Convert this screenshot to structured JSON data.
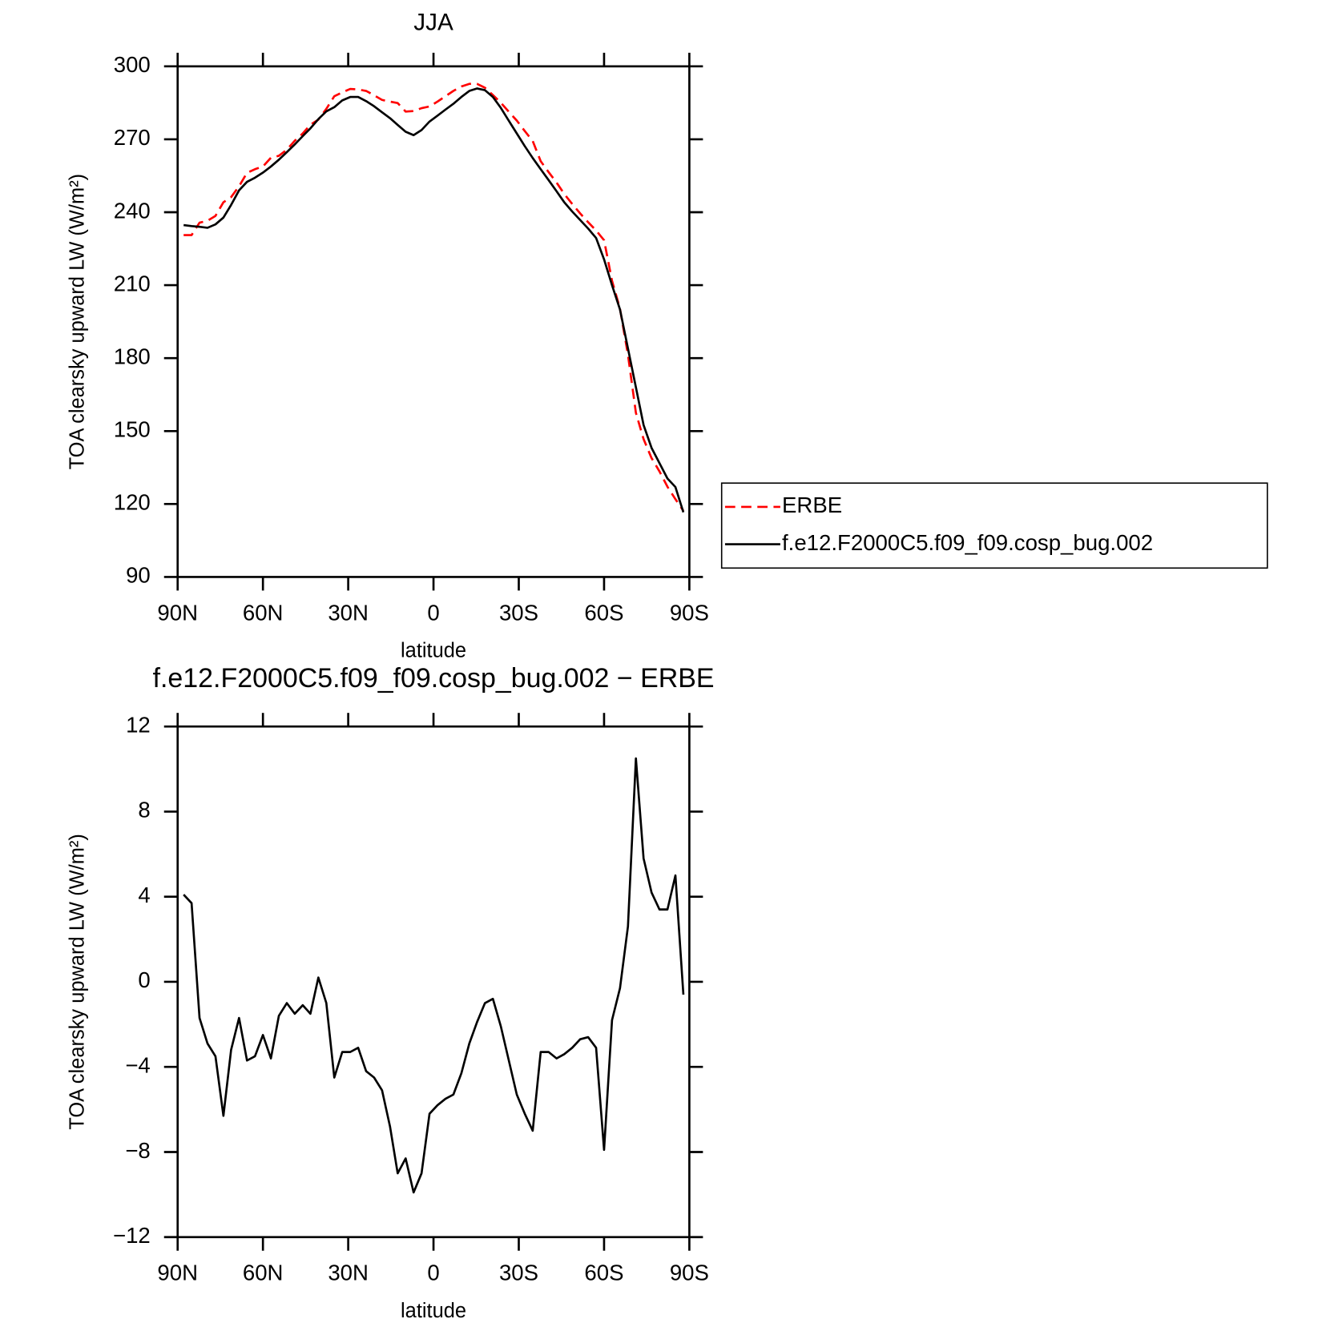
{
  "chart_data": [
    {
      "type": "line",
      "title": "JJA",
      "xlabel": "latitude",
      "ylabel": "TOA clearsky upward LW (W/m²)",
      "x": [
        87.9,
        85.1,
        82.3,
        79.5,
        76.7,
        73.9,
        71.2,
        68.4,
        65.6,
        62.8,
        60.0,
        57.2,
        54.4,
        51.6,
        48.8,
        46.0,
        43.3,
        40.5,
        37.7,
        34.9,
        32.1,
        29.3,
        26.5,
        23.7,
        20.9,
        18.1,
        15.3,
        12.6,
        9.8,
        7.0,
        4.2,
        1.4,
        -1.4,
        -4.2,
        -7.0,
        -9.8,
        -12.6,
        -15.3,
        -18.1,
        -20.9,
        -23.7,
        -26.5,
        -29.3,
        -32.1,
        -34.9,
        -37.7,
        -40.5,
        -43.3,
        -46.0,
        -48.8,
        -51.6,
        -54.4,
        -57.2,
        -60.0,
        -62.8,
        -65.6,
        -68.4,
        -71.2,
        -73.9,
        -76.7,
        -79.5,
        -82.3,
        -85.1,
        -87.9
      ],
      "series": [
        {
          "name": "ERBE",
          "color": "#ff0000",
          "linestyle": "dashed",
          "values": [
            230.6,
            230.6,
            235.7,
            236.5,
            238.5,
            244.1,
            246.2,
            250.7,
            256.2,
            257.7,
            258.8,
            262.4,
            263.2,
            265.7,
            269.4,
            272.4,
            276.0,
            278.1,
            282.5,
            287.7,
            289.3,
            290.7,
            290.5,
            289.9,
            288.1,
            286.2,
            285.5,
            284.9,
            281.4,
            281.6,
            282.8,
            283.5,
            285.5,
            287.7,
            289.9,
            291.7,
            292.8,
            292.8,
            291.2,
            288.2,
            285.0,
            281.3,
            277.7,
            273.4,
            269.3,
            261.0,
            256.5,
            252.2,
            247.5,
            243.4,
            239.5,
            235.9,
            232.5,
            228.5,
            211.8,
            200.3,
            181.4,
            157.5,
            146.7,
            138.9,
            133.4,
            127.1,
            122.0,
            117.2
          ]
        },
        {
          "name": "f.e12.F2000C5.f09_f09.cosp_bug.002",
          "color": "#000000",
          "linestyle": "solid",
          "values": [
            234.7,
            234.3,
            234.0,
            233.6,
            235.0,
            237.8,
            243.0,
            249.0,
            252.5,
            254.2,
            256.3,
            258.8,
            261.6,
            264.7,
            267.9,
            271.3,
            274.5,
            278.3,
            281.5,
            283.2,
            286.0,
            287.4,
            287.4,
            285.7,
            283.6,
            281.1,
            278.7,
            275.9,
            273.1,
            271.7,
            273.8,
            277.3,
            279.7,
            282.2,
            284.6,
            287.4,
            289.9,
            290.9,
            290.2,
            287.4,
            282.9,
            277.6,
            272.4,
            267.2,
            262.3,
            257.7,
            253.2,
            248.6,
            244.1,
            240.3,
            236.8,
            233.3,
            229.4,
            220.6,
            210.0,
            200.0,
            184.0,
            168.0,
            152.5,
            143.1,
            136.8,
            130.5,
            127.0,
            116.6
          ]
        }
      ],
      "xlim": [
        90,
        -90
      ],
      "xticks": [
        {
          "value": 90,
          "label": "90N"
        },
        {
          "value": 60,
          "label": "60N"
        },
        {
          "value": 30,
          "label": "30N"
        },
        0,
        {
          "value": -30,
          "label": "30S"
        },
        {
          "value": -60,
          "label": "60S"
        },
        {
          "value": -90,
          "label": "90S"
        }
      ],
      "ylim": [
        90,
        300
      ],
      "yticks": [
        90,
        120,
        150,
        180,
        210,
        240,
        270,
        300
      ],
      "legend": "right"
    },
    {
      "type": "line",
      "title": "f.e12.F2000C5.f09_f09.cosp_bug.002 − ERBE",
      "xlabel": "latitude",
      "ylabel": "TOA clearsky upward LW (W/m²)",
      "x": [
        87.9,
        85.1,
        82.3,
        79.5,
        76.7,
        73.9,
        71.2,
        68.4,
        65.6,
        62.8,
        60.0,
        57.2,
        54.4,
        51.6,
        48.8,
        46.0,
        43.3,
        40.5,
        37.7,
        34.9,
        32.1,
        29.3,
        26.5,
        23.7,
        20.9,
        18.1,
        15.3,
        12.6,
        9.8,
        7.0,
        4.2,
        1.4,
        -1.4,
        -4.2,
        -7.0,
        -9.8,
        -12.6,
        -15.3,
        -18.1,
        -20.9,
        -23.7,
        -26.5,
        -29.3,
        -32.1,
        -34.9,
        -37.7,
        -40.5,
        -43.3,
        -46.0,
        -48.8,
        -51.6,
        -54.4,
        -57.2,
        -60.0,
        -62.8,
        -65.6,
        -68.4,
        -71.2,
        -73.9,
        -76.7,
        -79.5,
        -82.3,
        -85.1,
        -87.9
      ],
      "series": [
        {
          "color": "#000000",
          "linestyle": "solid",
          "values": [
            4.1,
            3.7,
            -1.7,
            -2.9,
            -3.5,
            -6.3,
            -3.2,
            -1.7,
            -3.7,
            -3.5,
            -2.5,
            -3.6,
            -1.6,
            -1.0,
            -1.5,
            -1.1,
            -1.5,
            0.2,
            -1.0,
            -4.5,
            -3.3,
            -3.3,
            -3.1,
            -4.2,
            -4.5,
            -5.1,
            -6.8,
            -9.0,
            -8.3,
            -9.9,
            -9.0,
            -6.2,
            -5.8,
            -5.5,
            -5.3,
            -4.3,
            -2.9,
            -1.9,
            -1.0,
            -0.8,
            -2.1,
            -3.7,
            -5.3,
            -6.2,
            -7.0,
            -3.3,
            -3.3,
            -3.6,
            -3.4,
            -3.1,
            -2.7,
            -2.6,
            -3.1,
            -7.9,
            -1.8,
            -0.3,
            2.6,
            10.5,
            5.8,
            4.2,
            3.4,
            3.4,
            5.0,
            -0.6
          ]
        }
      ],
      "xlim": [
        90,
        -90
      ],
      "xticks": [
        {
          "value": 90,
          "label": "90N"
        },
        {
          "value": 60,
          "label": "60N"
        },
        {
          "value": 30,
          "label": "30N"
        },
        0,
        {
          "value": -30,
          "label": "30S"
        },
        {
          "value": -60,
          "label": "60S"
        },
        {
          "value": -90,
          "label": "90S"
        }
      ],
      "ylim": [
        -12,
        12
      ],
      "yticks": [
        {
          "value": -12,
          "label": "−12"
        },
        {
          "value": -8,
          "label": "−8"
        },
        {
          "value": -4,
          "label": "−4"
        },
        0,
        4,
        8,
        12
      ]
    }
  ]
}
